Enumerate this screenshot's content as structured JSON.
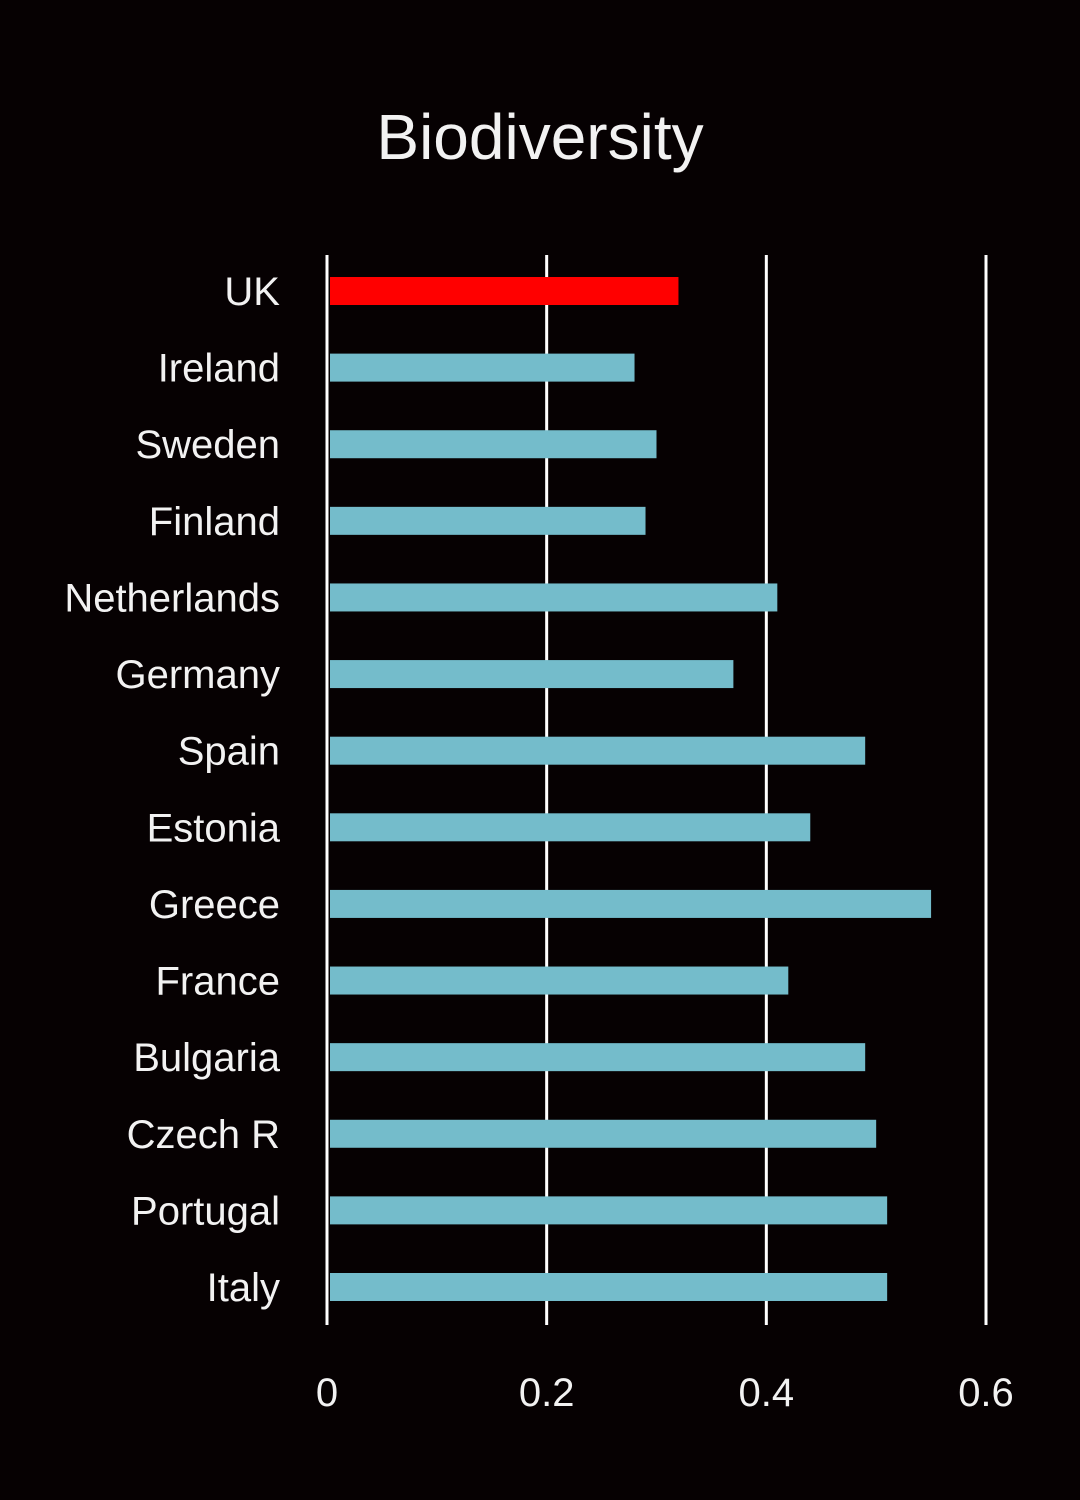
{
  "chart_data": {
    "type": "bar",
    "orientation": "horizontal",
    "title": "Biodiversity",
    "xlabel": "",
    "ylabel": "",
    "xlim": [
      0,
      0.6
    ],
    "xticks": [
      "0",
      "0.2",
      "0.4",
      "0.6"
    ],
    "grid": true,
    "categories": [
      "UK",
      "Ireland",
      "Sweden",
      "Finland",
      "Netherlands",
      "Germany",
      "Spain",
      "Estonia",
      "Greece",
      "France",
      "Bulgaria",
      "Czech R",
      "Portugal",
      "Italy"
    ],
    "values": [
      0.32,
      0.28,
      0.3,
      0.29,
      0.41,
      0.37,
      0.49,
      0.44,
      0.55,
      0.42,
      0.49,
      0.5,
      0.51,
      0.51
    ],
    "highlight": "UK",
    "colors": {
      "bar": "#74bccb",
      "highlight": "#ff0000",
      "grid": "#ffffff",
      "background": "#060102"
    }
  }
}
